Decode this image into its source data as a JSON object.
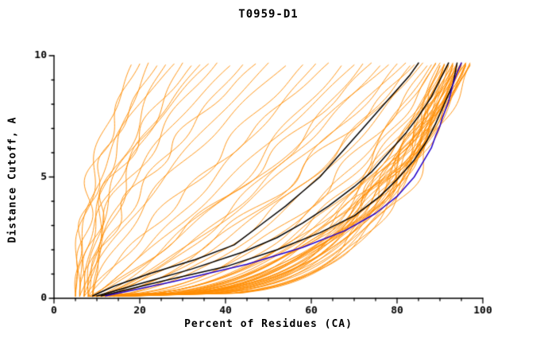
{
  "chart_data": {
    "type": "line",
    "title": "T0959-D1",
    "xlabel": "Percent of Residues (CA)",
    "ylabel": "Distance Cutoff, A",
    "xlim": [
      0,
      100
    ],
    "ylim": [
      0,
      10
    ],
    "x_major_ticks": [
      0,
      20,
      40,
      60,
      80,
      100
    ],
    "x_minor_step": 5,
    "y_major_ticks": [
      0,
      5,
      10
    ],
    "y_minor_step": 1,
    "grid": false,
    "legend": "none",
    "colors": {
      "model_curves": "#ff8c00",
      "reference_curves": "#000000",
      "highlight_curve": "#2200cc",
      "axis": "#000000"
    },
    "curve_y_start": 0.08,
    "curve_y_end": 9.7,
    "orange_encoding": "each orange model curve = [x_at_bottom_percent, x_at_top_percent, shape_exponent, seed]; x(t)=x0+(xt-x0)*t^a for t in [0,1] mapping y from curve_y_start to curve_y_end",
    "orange_curves": [
      [
        5,
        18,
        1.8,
        1
      ],
      [
        6,
        20,
        2.2,
        2
      ],
      [
        7,
        22,
        1.5,
        3
      ],
      [
        5,
        24,
        2.0,
        4
      ],
      [
        8,
        26,
        1.7,
        5
      ],
      [
        6,
        28,
        2.4,
        6
      ],
      [
        9,
        30,
        1.4,
        7
      ],
      [
        7,
        32,
        1.9,
        8
      ],
      [
        5,
        34,
        1.6,
        9
      ],
      [
        8,
        36,
        2.1,
        10
      ],
      [
        6,
        38,
        1.5,
        11
      ],
      [
        9,
        41,
        1.8,
        12
      ],
      [
        7,
        44,
        1.3,
        13
      ],
      [
        8,
        47,
        1.6,
        14
      ],
      [
        6,
        50,
        1.2,
        15
      ],
      [
        9,
        54,
        1.4,
        16
      ],
      [
        7,
        58,
        1.0,
        17
      ],
      [
        9,
        61,
        0.9,
        18
      ],
      [
        8,
        64,
        1.1,
        19
      ],
      [
        10,
        67,
        0.8,
        20
      ],
      [
        9,
        70,
        0.95,
        21
      ],
      [
        11,
        72,
        0.7,
        22
      ],
      [
        8,
        74,
        0.85,
        23
      ],
      [
        10,
        76,
        0.75,
        24
      ],
      [
        9,
        78,
        0.9,
        25
      ],
      [
        11,
        80,
        0.65,
        26
      ],
      [
        10,
        82,
        0.8,
        27
      ],
      [
        12,
        83,
        0.6,
        28
      ],
      [
        9,
        84,
        0.7,
        29
      ],
      [
        11,
        85,
        0.55,
        30
      ],
      [
        10,
        86,
        0.65,
        31
      ],
      [
        12,
        87,
        0.5,
        32
      ],
      [
        8,
        88,
        0.45,
        33
      ],
      [
        10,
        89,
        0.4,
        34
      ],
      [
        12,
        90,
        0.35,
        35
      ],
      [
        9,
        90,
        0.3,
        36
      ],
      [
        11,
        91,
        0.42,
        37
      ],
      [
        13,
        91,
        0.28,
        38
      ],
      [
        10,
        92,
        0.38,
        39
      ],
      [
        12,
        92,
        0.25,
        40
      ],
      [
        14,
        92,
        0.33,
        41
      ],
      [
        9,
        93,
        0.4,
        42
      ],
      [
        11,
        93,
        0.3,
        43
      ],
      [
        13,
        93,
        0.36,
        44
      ],
      [
        15,
        93,
        0.24,
        45
      ],
      [
        10,
        94,
        0.42,
        46
      ],
      [
        12,
        94,
        0.32,
        47
      ],
      [
        14,
        94,
        0.27,
        48
      ],
      [
        9,
        94,
        0.37,
        49
      ],
      [
        11,
        95,
        0.3,
        50
      ],
      [
        13,
        95,
        0.4,
        51
      ],
      [
        15,
        95,
        0.25,
        52
      ],
      [
        10,
        95,
        0.34,
        53
      ],
      [
        12,
        95,
        0.28,
        54
      ],
      [
        14,
        96,
        0.38,
        55
      ],
      [
        9,
        96,
        0.3,
        56
      ],
      [
        11,
        96,
        0.26,
        57
      ],
      [
        13,
        96,
        0.34,
        58
      ],
      [
        15,
        96,
        0.42,
        59
      ],
      [
        10,
        96,
        0.29,
        60
      ],
      [
        12,
        97,
        0.36,
        61
      ],
      [
        14,
        97,
        0.26,
        62
      ],
      [
        11,
        97,
        0.32,
        63
      ],
      [
        13,
        97,
        0.4,
        64
      ],
      [
        8,
        91,
        0.24,
        65
      ],
      [
        16,
        94,
        0.3,
        66
      ],
      [
        12,
        89,
        0.46,
        67
      ],
      [
        14,
        90,
        0.23,
        68
      ],
      [
        10,
        91,
        0.27,
        69
      ],
      [
        16,
        96,
        0.35,
        70
      ],
      [
        8,
        95,
        0.31,
        71
      ],
      [
        12,
        93,
        0.22,
        72
      ]
    ],
    "black_curves": [
      [
        [
          9,
          0.1
        ],
        [
          14,
          0.5
        ],
        [
          22,
          1.0
        ],
        [
          33,
          1.6
        ],
        [
          42,
          2.2
        ],
        [
          48,
          3.0
        ],
        [
          54,
          3.8
        ],
        [
          58,
          4.4
        ],
        [
          62,
          5.0
        ],
        [
          66,
          5.8
        ],
        [
          69,
          6.4
        ],
        [
          72,
          7.0
        ],
        [
          76,
          7.8
        ],
        [
          80,
          8.6
        ],
        [
          83,
          9.2
        ],
        [
          85,
          9.7
        ]
      ],
      [
        [
          10,
          0.1
        ],
        [
          20,
          0.6
        ],
        [
          32,
          1.2
        ],
        [
          44,
          1.9
        ],
        [
          52,
          2.5
        ],
        [
          58,
          3.1
        ],
        [
          64,
          3.8
        ],
        [
          70,
          4.6
        ],
        [
          74,
          5.2
        ],
        [
          78,
          6.0
        ],
        [
          82,
          6.8
        ],
        [
          85,
          7.5
        ],
        [
          88,
          8.3
        ],
        [
          90,
          9.0
        ],
        [
          92,
          9.7
        ]
      ],
      [
        [
          11,
          0.1
        ],
        [
          25,
          0.7
        ],
        [
          40,
          1.3
        ],
        [
          52,
          2.0
        ],
        [
          62,
          2.7
        ],
        [
          70,
          3.4
        ],
        [
          76,
          4.2
        ],
        [
          80,
          4.9
        ],
        [
          84,
          5.7
        ],
        [
          87,
          6.5
        ],
        [
          89,
          7.2
        ],
        [
          91,
          8.0
        ],
        [
          93,
          8.8
        ],
        [
          94,
          9.7
        ]
      ]
    ],
    "blue_curve": [
      [
        12,
        0.1
      ],
      [
        28,
        0.7
      ],
      [
        45,
        1.4
      ],
      [
        58,
        2.1
      ],
      [
        68,
        2.8
      ],
      [
        75,
        3.5
      ],
      [
        80,
        4.2
      ],
      [
        84,
        5.0
      ],
      [
        86,
        5.6
      ],
      [
        88,
        6.2
      ],
      [
        89,
        6.7
      ],
      [
        90,
        7.1
      ],
      [
        90.5,
        7.4
      ],
      [
        92,
        8.1
      ],
      [
        93,
        8.8
      ],
      [
        94,
        9.3
      ],
      [
        95,
        9.7
      ]
    ]
  }
}
